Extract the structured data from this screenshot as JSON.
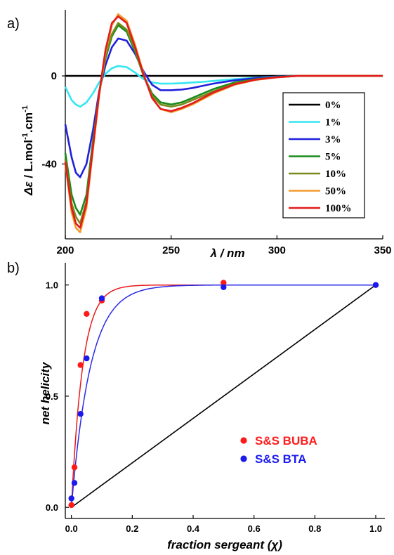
{
  "panels": {
    "a_label": "a)",
    "b_label": "b)"
  },
  "chart_data": [
    {
      "type": "line",
      "panel": "a)",
      "xlabel": "λ / nm",
      "ylabel": "Δε / L.mol-1.cm-1",
      "ylabel_parts": {
        "symbol": "Δε",
        "unit_a": " / L.mol",
        "sup_a": "-1",
        "unit_b": ".cm",
        "sup_b": "-1"
      },
      "xlim": [
        200,
        350
      ],
      "ylim": [
        -74,
        30
      ],
      "xticks": [
        200,
        250,
        300,
        350
      ],
      "yticks": [
        0,
        -40
      ],
      "grid": false,
      "legend_placement": "bottom-right",
      "x": [
        200,
        203,
        205,
        207,
        210,
        213,
        216,
        219,
        222,
        225,
        229,
        233,
        237,
        241,
        245,
        250,
        255,
        260,
        265,
        270,
        280,
        290,
        300,
        310,
        320,
        330,
        340,
        350
      ],
      "series": [
        {
          "name": "0%",
          "color": "#000000",
          "values": [
            0,
            0,
            0,
            0,
            0,
            0,
            0,
            0,
            0,
            0,
            0,
            0,
            0,
            0,
            0,
            0,
            0,
            0,
            0,
            0,
            0,
            0,
            0,
            0,
            0,
            0,
            0,
            0
          ]
        },
        {
          "name": "1%",
          "color": "#33e6f0",
          "values": [
            -5,
            -11,
            -13,
            -14,
            -12,
            -8,
            -3,
            1,
            3.5,
            4.5,
            4,
            1.5,
            -1.5,
            -3,
            -3.5,
            -3.5,
            -3.3,
            -3,
            -2.7,
            -2.3,
            -1.5,
            -0.8,
            -0.3,
            0,
            0,
            0,
            0,
            0
          ]
        },
        {
          "name": "3%",
          "color": "#2020dd",
          "values": [
            -22,
            -37,
            -44,
            -46,
            -40,
            -25,
            -7,
            5,
            13,
            17,
            16,
            10,
            2,
            -4,
            -6.5,
            -6.5,
            -6.2,
            -5.5,
            -4.5,
            -3.5,
            -2,
            -1,
            -0.4,
            0,
            0,
            0,
            0,
            0
          ]
        },
        {
          "name": "5%",
          "color": "#1a8a1a",
          "values": [
            -35,
            -54,
            -60,
            -63,
            -54,
            -30,
            -8,
            8,
            18,
            23,
            20,
            11,
            0,
            -8,
            -12,
            -13,
            -12,
            -10,
            -8,
            -6,
            -3,
            -1.5,
            -0.6,
            0,
            0,
            0,
            0,
            0
          ]
        },
        {
          "name": "10%",
          "color": "#7a8a1a",
          "values": [
            -38,
            -58,
            -64,
            -67,
            -57,
            -32,
            -8,
            9,
            19,
            24,
            21,
            12,
            0,
            -9,
            -13,
            -14,
            -13,
            -11,
            -9,
            -7,
            -3.5,
            -1.6,
            -0.6,
            0,
            0,
            0,
            0,
            0
          ]
        },
        {
          "name": "50%",
          "color": "#f39a2c",
          "values": [
            -40,
            -62,
            -69,
            -71,
            -60,
            -34,
            -9,
            11,
            23,
            28,
            25,
            14,
            1,
            -10,
            -15,
            -16.5,
            -15,
            -13,
            -10.5,
            -8,
            -4,
            -1.8,
            -0.7,
            0,
            0,
            0,
            0,
            0
          ]
        },
        {
          "name": "100%",
          "color": "#e21a1a",
          "values": [
            -39,
            -60,
            -67,
            -69,
            -58,
            -33,
            -8,
            12,
            24,
            27,
            24,
            13,
            0.5,
            -10,
            -15,
            -16,
            -14.5,
            -12.5,
            -10,
            -7.5,
            -3.8,
            -1.7,
            -0.6,
            0,
            0,
            0,
            0,
            0
          ]
        }
      ]
    },
    {
      "type": "scatter",
      "panel": "b)",
      "xlabel": "fraction sergeant (χ)",
      "ylabel": "net helicity",
      "xlim": [
        -0.02,
        1.03
      ],
      "ylim": [
        -0.05,
        1.1
      ],
      "xticks": [
        "0.0",
        "0.2",
        "0.4",
        "0.6",
        "0.8",
        "1.0"
      ],
      "yticks": [
        "0.0",
        "0.5",
        "1.0"
      ],
      "grid": false,
      "legend_placement": "bottom-right",
      "series": [
        {
          "name": "S&S BUBA",
          "color": "#ff1a1a",
          "points": [
            [
              0,
              0.01
            ],
            [
              0.01,
              0.18
            ],
            [
              0.03,
              0.64
            ],
            [
              0.05,
              0.87
            ],
            [
              0.1,
              0.93
            ],
            [
              0.5,
              1.01
            ],
            [
              1.0,
              1.0
            ]
          ],
          "fit": {
            "color": "#e81a1a",
            "k": 27
          }
        },
        {
          "name": "S&S BTA",
          "color": "#1a1aee",
          "points": [
            [
              0,
              0.04
            ],
            [
              0.01,
              0.11
            ],
            [
              0.03,
              0.42
            ],
            [
              0.05,
              0.67
            ],
            [
              0.1,
              0.94
            ],
            [
              0.5,
              0.99
            ],
            [
              1.0,
              1.0
            ]
          ],
          "fit": {
            "color": "#2a2ae8",
            "k": 16
          }
        }
      ],
      "reference_line": {
        "color": "#000000",
        "from": [
          0,
          0
        ],
        "to": [
          1,
          1
        ]
      }
    }
  ]
}
